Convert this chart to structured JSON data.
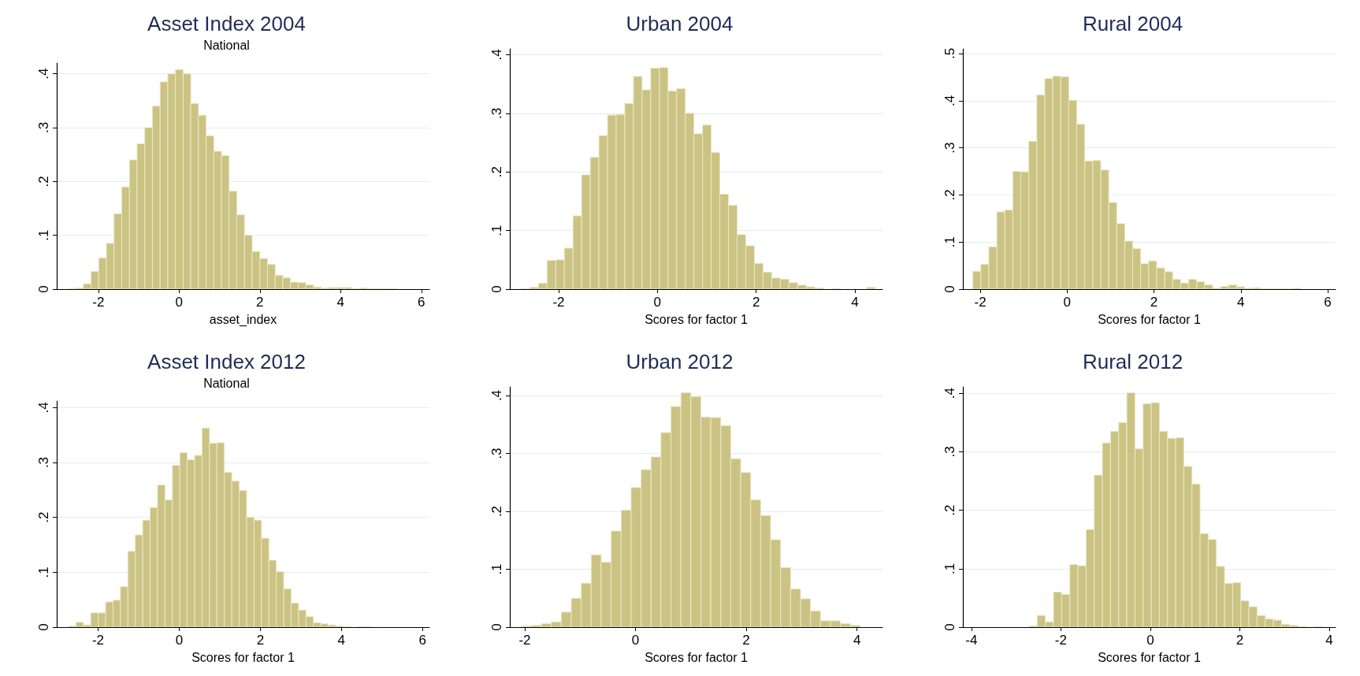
{
  "chart_data": [
    {
      "type": "histogram",
      "title": "Asset Index 2004",
      "subtitle": "National",
      "xlabel": "asset_index",
      "color": "#cbc383",
      "grid": "y",
      "bins": [
        -2.75,
        -2.56,
        -2.37,
        -2.18,
        -1.99,
        -1.8,
        -1.61,
        -1.42,
        -1.23,
        -1.04,
        -0.85,
        -0.66,
        -0.47,
        -0.28,
        -0.09,
        0.1,
        0.29,
        0.48,
        0.67,
        0.86,
        1.05,
        1.24,
        1.43,
        1.62,
        1.81,
        2,
        2.19,
        2.38,
        2.57,
        2.76,
        2.95,
        3.14,
        3.33,
        3.52,
        3.71,
        3.9,
        4.09,
        4.28,
        4.47,
        4.66,
        4.85,
        5.04,
        5.23,
        5.42
      ],
      "values": [
        0.001,
        0.002,
        0.01,
        0.033,
        0.058,
        0.085,
        0.14,
        0.19,
        0.24,
        0.27,
        0.3,
        0.34,
        0.385,
        0.4,
        0.408,
        0.4,
        0.345,
        0.323,
        0.285,
        0.256,
        0.248,
        0.182,
        0.138,
        0.1,
        0.07,
        0.057,
        0.046,
        0.026,
        0.021,
        0.013,
        0.012,
        0.008,
        0.004,
        0.002,
        0.003,
        0.003,
        0.003,
        0.001,
        0.002,
        0.001,
        0.001,
        0.001,
        0.001
      ],
      "xlim": [
        -3.03,
        6.2
      ],
      "ylim": [
        0,
        0.42
      ],
      "xticks": [
        -2,
        0,
        2,
        4,
        6
      ],
      "yticks": [
        {
          "value": 0,
          "label": "0"
        },
        {
          "value": 0.1,
          "label": ".1"
        },
        {
          "value": 0.2,
          "label": ".2"
        },
        {
          "value": 0.3,
          "label": ".3"
        },
        {
          "value": 0.4,
          "label": ".4"
        }
      ]
    },
    {
      "type": "histogram",
      "title": "Urban 2004",
      "xlabel": "Scores for factor 1",
      "color": "#cbc383",
      "grid": "y",
      "bins": [
        -2.76,
        -2.585,
        -2.41,
        -2.235,
        -2.06,
        -1.885,
        -1.71,
        -1.535,
        -1.36,
        -1.185,
        -1.01,
        -0.835,
        -0.66,
        -0.485,
        -0.31,
        -0.135,
        0.04,
        0.215,
        0.39,
        0.565,
        0.74,
        0.915,
        1.09,
        1.265,
        1.44,
        1.615,
        1.79,
        1.965,
        2.14,
        2.315,
        2.49,
        2.665,
        2.84,
        3.015,
        3.19,
        3.365,
        3.54,
        3.715,
        3.89,
        4.065,
        4.24,
        4.415
      ],
      "values": [
        0.001,
        0.003,
        0.01,
        0.049,
        0.05,
        0.07,
        0.125,
        0.195,
        0.225,
        0.262,
        0.297,
        0.298,
        0.317,
        0.363,
        0.34,
        0.377,
        0.378,
        0.338,
        0.342,
        0.3,
        0.265,
        0.28,
        0.233,
        0.162,
        0.143,
        0.093,
        0.074,
        0.044,
        0.029,
        0.019,
        0.017,
        0.011,
        0.007,
        0.004,
        0.002,
        null,
        0.001,
        null,
        null,
        null,
        0.003
      ],
      "xlim": [
        -2.99,
        4.56
      ],
      "ylim": [
        0,
        0.41
      ],
      "xticks": [
        -2,
        0,
        2,
        4
      ],
      "yticks": [
        {
          "value": 0,
          "label": "0"
        },
        {
          "value": 0.1,
          "label": ".1"
        },
        {
          "value": 0.2,
          "label": ".2"
        },
        {
          "value": 0.3,
          "label": ".3"
        },
        {
          "value": 0.4,
          "label": ".4"
        }
      ]
    },
    {
      "type": "histogram",
      "title": "Rural 2004",
      "xlabel": "Scores for factor 1",
      "color": "#cbc383",
      "grid": "y",
      "bins": [
        -2.17,
        -1.986,
        -1.802,
        -1.618,
        -1.434,
        -1.25,
        -1.066,
        -0.882,
        -0.698,
        -0.514,
        -0.33,
        -0.146,
        0.038,
        0.222,
        0.406,
        0.59,
        0.774,
        0.958,
        1.142,
        1.326,
        1.51,
        1.694,
        1.878,
        2.062,
        2.246,
        2.43,
        2.614,
        2.798,
        2.982,
        3.166,
        3.35,
        3.534,
        3.718,
        3.902,
        4.086,
        4.27,
        4.454,
        4.638,
        4.822,
        5.006,
        5.19,
        5.374
      ],
      "values": [
        0.038,
        0.053,
        0.09,
        0.164,
        0.168,
        0.25,
        0.249,
        0.314,
        0.412,
        0.447,
        0.452,
        0.451,
        0.401,
        0.35,
        0.272,
        0.273,
        0.253,
        0.184,
        0.139,
        0.102,
        0.086,
        0.054,
        0.06,
        0.045,
        0.037,
        0.021,
        0.013,
        0.021,
        0.016,
        0.009,
        0.002,
        0.006,
        0.009,
        0.005,
        0.002,
        0.003,
        0.001,
        0.001,
        0.001,
        0.001,
        0.002
      ],
      "xlim": [
        -2.4,
        6.18
      ],
      "ylim": [
        0,
        0.51
      ],
      "xticks": [
        -2,
        0,
        2,
        4,
        6
      ],
      "yticks": [
        {
          "value": 0,
          "label": "0"
        },
        {
          "value": 0.1,
          "label": ".1"
        },
        {
          "value": 0.2,
          "label": ".2"
        },
        {
          "value": 0.3,
          "label": ".3"
        },
        {
          "value": 0.4,
          "label": ".4"
        },
        {
          "value": 0.5,
          "label": ".5"
        }
      ]
    },
    {
      "type": "histogram",
      "title": "Asset Index 2012",
      "subtitle": "National",
      "xlabel": "Scores for factor 1",
      "color": "#cbc383",
      "grid": "y",
      "bins": [
        -2.73,
        -2.547,
        -2.364,
        -2.181,
        -1.998,
        -1.815,
        -1.632,
        -1.449,
        -1.266,
        -1.083,
        -0.9,
        -0.717,
        -0.534,
        -0.351,
        -0.168,
        0.015,
        0.198,
        0.381,
        0.564,
        0.747,
        0.93,
        1.113,
        1.296,
        1.479,
        1.662,
        1.845,
        2.028,
        2.211,
        2.394,
        2.577,
        2.76,
        2.943,
        3.126,
        3.309,
        3.492,
        3.675,
        3.858,
        4.041,
        4.224,
        4.407,
        4.59,
        4.773
      ],
      "values": [
        0.002,
        0.009,
        0.004,
        0.026,
        0.026,
        0.046,
        0.049,
        0.074,
        0.138,
        0.168,
        0.195,
        0.218,
        0.259,
        0.232,
        0.295,
        0.318,
        0.305,
        0.313,
        0.363,
        0.335,
        0.336,
        0.282,
        0.266,
        0.249,
        0.2,
        0.195,
        0.162,
        0.122,
        0.101,
        0.07,
        0.044,
        0.031,
        0.019,
        0.008,
        0.006,
        0.004,
        0.002,
        0.001,
        null,
        0.001,
        0.001
      ],
      "xlim": [
        -3.02,
        6.17
      ],
      "ylim": [
        0,
        0.412
      ],
      "xticks": [
        -2,
        0,
        2,
        4,
        6
      ],
      "yticks": [
        {
          "value": 0,
          "label": "0"
        },
        {
          "value": 0.1,
          "label": ".1"
        },
        {
          "value": 0.2,
          "label": ".2"
        },
        {
          "value": 0.3,
          "label": ".3"
        },
        {
          "value": 0.4,
          "label": ".4"
        }
      ]
    },
    {
      "type": "histogram",
      "title": "Urban 2012",
      "xlabel": "Scores for factor 1",
      "color": "#cbc383",
      "grid": "y",
      "bins": [
        -2.06,
        -1.88,
        -1.7,
        -1.52,
        -1.34,
        -1.16,
        -0.98,
        -0.8,
        -0.62,
        -0.44,
        -0.26,
        -0.08,
        0.1,
        0.28,
        0.46,
        0.64,
        0.82,
        1,
        1.18,
        1.36,
        1.54,
        1.72,
        1.9,
        2.08,
        2.26,
        2.44,
        2.62,
        2.8,
        2.98,
        3.16,
        3.34,
        3.52,
        3.7,
        3.88,
        4.06
      ],
      "values": [
        0.002,
        0.003,
        0.006,
        0.009,
        0.026,
        0.05,
        0.076,
        0.125,
        0.112,
        0.166,
        0.202,
        0.241,
        0.272,
        0.294,
        0.336,
        0.381,
        0.405,
        0.398,
        0.363,
        0.362,
        0.348,
        0.291,
        0.267,
        0.22,
        0.193,
        0.151,
        0.103,
        0.066,
        0.049,
        0.028,
        0.011,
        0.011,
        0.006,
        0.003
      ],
      "xlim": [
        -2.27,
        4.46
      ],
      "ylim": [
        0,
        0.415
      ],
      "xticks": [
        -2,
        0,
        2,
        4
      ],
      "yticks": [
        {
          "value": 0,
          "label": "0"
        },
        {
          "value": 0.1,
          "label": ".1"
        },
        {
          "value": 0.2,
          "label": ".2"
        },
        {
          "value": 0.3,
          "label": ".3"
        },
        {
          "value": 0.4,
          "label": ".4"
        }
      ]
    },
    {
      "type": "histogram",
      "title": "Rural 2012",
      "xlabel": "Scores for factor 1",
      "color": "#cbc383",
      "grid": "y",
      "bins": [
        -2.71,
        -2.528,
        -2.346,
        -2.164,
        -1.982,
        -1.8,
        -1.618,
        -1.436,
        -1.254,
        -1.072,
        -0.89,
        -0.708,
        -0.526,
        -0.344,
        -0.162,
        0.02,
        0.202,
        0.384,
        0.566,
        0.748,
        0.93,
        1.112,
        1.294,
        1.476,
        1.658,
        1.84,
        2.022,
        2.204,
        2.386,
        2.568,
        2.75,
        2.932,
        3.114,
        3.296,
        3.478,
        3.66,
        3.842
      ],
      "values": [
        0.002,
        0.02,
        0.009,
        0.06,
        0.056,
        0.107,
        0.105,
        0.167,
        0.26,
        0.315,
        0.335,
        0.35,
        0.401,
        0.305,
        0.382,
        0.384,
        0.335,
        0.323,
        0.324,
        0.275,
        0.245,
        0.16,
        0.15,
        0.104,
        0.075,
        0.076,
        0.045,
        0.035,
        0.02,
        0.014,
        0.012,
        0.005,
        0.003,
        0.001,
        null,
        0.001
      ],
      "xlim": [
        -4.19,
        4.14
      ],
      "ylim": [
        0,
        0.411
      ],
      "xticks": [
        -4,
        -2,
        0,
        2,
        4
      ],
      "yticks": [
        {
          "value": 0,
          "label": "0"
        },
        {
          "value": 0.1,
          "label": ".1"
        },
        {
          "value": 0.2,
          "label": ".2"
        },
        {
          "value": 0.3,
          "label": ".3"
        },
        {
          "value": 0.4,
          "label": ".4"
        }
      ]
    }
  ]
}
